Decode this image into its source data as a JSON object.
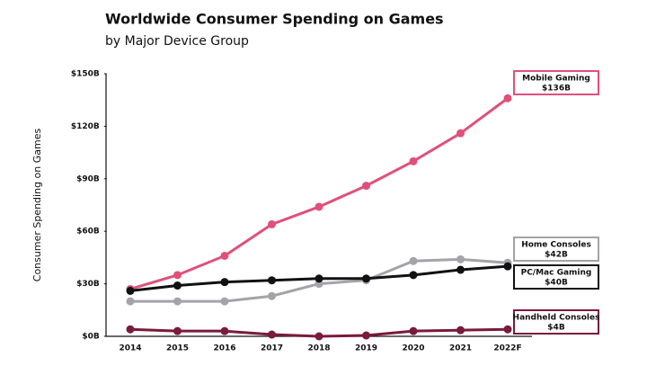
{
  "chart_data": {
    "type": "line",
    "title": "Worldwide Consumer Spending on Games",
    "subtitle": "by Major Device Group",
    "y_label": "Consumer Spending on Games",
    "categories": [
      "2014",
      "2015",
      "2016",
      "2017",
      "2018",
      "2019",
      "2020",
      "2021",
      "2022F"
    ],
    "series": [
      {
        "name": "Mobile Gaming",
        "color": "#e0507a",
        "values": [
          27,
          35,
          46,
          64,
          74,
          86,
          100,
          116,
          136
        ],
        "value_labels": [
          null,
          null,
          null,
          null,
          null,
          null,
          null,
          null,
          "$136B"
        ]
      },
      {
        "name": "Home Consoles",
        "color": "#a3a3aa",
        "values": [
          20,
          20,
          20,
          23,
          30,
          32,
          43,
          44,
          42
        ],
        "value_labels": [
          null,
          null,
          null,
          null,
          null,
          null,
          null,
          null,
          "$42B"
        ]
      },
      {
        "name": "PC/Mac Gaming",
        "color": "#111111",
        "values": [
          26,
          29,
          31,
          32,
          33,
          33,
          35,
          38,
          40
        ],
        "value_labels": [
          null,
          null,
          null,
          null,
          null,
          null,
          null,
          null,
          "$40B"
        ]
      },
      {
        "name": "Handheld Consoles",
        "color": "#7a1a3c",
        "values": [
          4,
          3,
          3,
          1,
          0,
          0.5,
          3,
          3.5,
          4
        ],
        "value_labels": [
          null,
          null,
          null,
          null,
          null,
          null,
          null,
          null,
          "$4B"
        ]
      }
    ],
    "ylim": [
      0,
      150
    ],
    "yticks": [
      {
        "value": 0,
        "label": "$0B"
      },
      {
        "value": 30,
        "label": "$30B"
      },
      {
        "value": 60,
        "label": "$60B"
      },
      {
        "value": 90,
        "label": "$90B"
      },
      {
        "value": 120,
        "label": "$120B"
      },
      {
        "value": 150,
        "label": "$150B"
      }
    ],
    "grid": false
  }
}
